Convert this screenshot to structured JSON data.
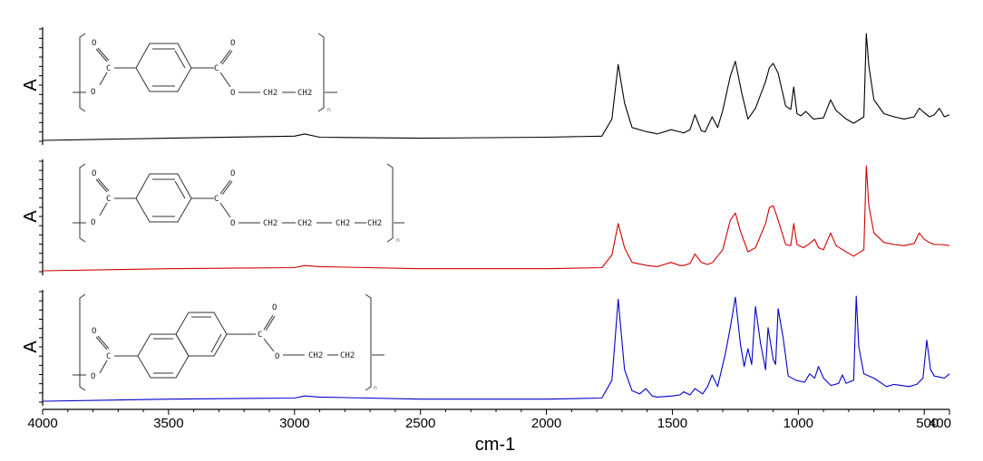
{
  "chart_data": [
    {
      "type": "line",
      "ylabel": "A",
      "color": "#000000",
      "structure": {
        "kind": "benzene",
        "labels": [
          "O",
          "C",
          "O",
          "C",
          "O",
          "O",
          "CH2",
          "CH2",
          "n"
        ]
      },
      "series": [
        {
          "x": [
            4000,
            3500,
            3000,
            2960,
            2900,
            2500,
            2000,
            1780,
            1740,
            1715,
            1690,
            1660,
            1600,
            1578,
            1560,
            1505,
            1470,
            1455,
            1430,
            1410,
            1385,
            1370,
            1342,
            1320,
            1300,
            1270,
            1250,
            1225,
            1200,
            1170,
            1130,
            1115,
            1100,
            1080,
            1050,
            1030,
            1018,
            1005,
            990,
            970,
            940,
            900,
            872,
            850,
            810,
            780,
            740,
            730,
            720,
            700,
            660,
            620,
            580,
            540,
            520,
            500,
            480,
            460,
            440,
            420,
            400
          ],
          "y": [
            0.0,
            0.02,
            0.04,
            0.06,
            0.03,
            0.02,
            0.03,
            0.04,
            0.2,
            0.71,
            0.35,
            0.12,
            0.08,
            0.07,
            0.06,
            0.1,
            0.08,
            0.07,
            0.1,
            0.24,
            0.09,
            0.08,
            0.22,
            0.12,
            0.28,
            0.6,
            0.74,
            0.45,
            0.2,
            0.3,
            0.55,
            0.68,
            0.72,
            0.63,
            0.32,
            0.29,
            0.5,
            0.25,
            0.23,
            0.27,
            0.2,
            0.21,
            0.38,
            0.28,
            0.2,
            0.16,
            0.22,
            1.0,
            0.7,
            0.38,
            0.25,
            0.22,
            0.2,
            0.22,
            0.3,
            0.26,
            0.22,
            0.24,
            0.3,
            0.22,
            0.24
          ]
        }
      ]
    },
    {
      "type": "line",
      "ylabel": "A",
      "color": "#d00000",
      "structure": {
        "kind": "benzene",
        "labels": [
          "O",
          "C",
          "O",
          "C",
          "O",
          "O",
          "CH2",
          "CH2",
          "CH2",
          "CH2",
          "n"
        ]
      },
      "series": [
        {
          "x": [
            4000,
            3500,
            3000,
            2960,
            2900,
            2500,
            2000,
            1780,
            1740,
            1715,
            1690,
            1660,
            1600,
            1560,
            1505,
            1470,
            1455,
            1430,
            1410,
            1385,
            1360,
            1340,
            1300,
            1270,
            1250,
            1230,
            1200,
            1170,
            1130,
            1115,
            1100,
            1085,
            1050,
            1030,
            1018,
            1005,
            980,
            960,
            935,
            920,
            900,
            872,
            850,
            810,
            780,
            740,
            730,
            720,
            700,
            660,
            620,
            580,
            540,
            520,
            500,
            480,
            460,
            430,
            400
          ],
          "y": [
            0.0,
            0.02,
            0.03,
            0.05,
            0.04,
            0.02,
            0.02,
            0.03,
            0.15,
            0.45,
            0.22,
            0.08,
            0.05,
            0.04,
            0.08,
            0.05,
            0.05,
            0.07,
            0.16,
            0.08,
            0.06,
            0.08,
            0.2,
            0.48,
            0.55,
            0.38,
            0.18,
            0.22,
            0.45,
            0.6,
            0.62,
            0.52,
            0.25,
            0.24,
            0.45,
            0.25,
            0.22,
            0.25,
            0.3,
            0.22,
            0.2,
            0.36,
            0.24,
            0.18,
            0.14,
            0.2,
            1.0,
            0.62,
            0.36,
            0.27,
            0.25,
            0.24,
            0.26,
            0.36,
            0.3,
            0.27,
            0.25,
            0.25,
            0.24
          ]
        }
      ]
    },
    {
      "type": "line",
      "ylabel": "A",
      "color": "#0000cc",
      "structure": {
        "kind": "naphthalene",
        "labels": [
          "O",
          "C",
          "O",
          "C",
          "O",
          "O",
          "CH2",
          "CH2",
          "n"
        ]
      },
      "series": [
        {
          "x": [
            4000,
            3500,
            3000,
            2960,
            2900,
            2500,
            2000,
            1780,
            1740,
            1715,
            1690,
            1660,
            1630,
            1605,
            1580,
            1560,
            1500,
            1470,
            1455,
            1430,
            1410,
            1380,
            1360,
            1342,
            1320,
            1290,
            1270,
            1250,
            1230,
            1215,
            1200,
            1185,
            1170,
            1150,
            1130,
            1120,
            1100,
            1090,
            1080,
            1060,
            1040,
            1010,
            975,
            955,
            935,
            920,
            900,
            870,
            840,
            825,
            810,
            780,
            770,
            760,
            740,
            700,
            650,
            620,
            560,
            530,
            505,
            490,
            475,
            460,
            440,
            420,
            400
          ],
          "y": [
            0.0,
            0.02,
            0.03,
            0.05,
            0.04,
            0.02,
            0.02,
            0.03,
            0.2,
            0.97,
            0.3,
            0.1,
            0.07,
            0.12,
            0.05,
            0.04,
            0.05,
            0.06,
            0.09,
            0.06,
            0.12,
            0.07,
            0.14,
            0.25,
            0.14,
            0.45,
            0.7,
            0.99,
            0.55,
            0.33,
            0.5,
            0.35,
            0.9,
            0.55,
            0.3,
            0.7,
            0.4,
            0.35,
            0.88,
            0.6,
            0.24,
            0.2,
            0.18,
            0.26,
            0.22,
            0.33,
            0.22,
            0.15,
            0.17,
            0.25,
            0.17,
            0.2,
            1.0,
            0.52,
            0.26,
            0.22,
            0.14,
            0.16,
            0.14,
            0.16,
            0.22,
            0.58,
            0.3,
            0.24,
            0.23,
            0.22,
            0.26
          ]
        }
      ]
    }
  ],
  "x_axis": {
    "label": "cm-1",
    "xlim": [
      4000,
      400
    ],
    "ticks": [
      4000,
      3500,
      3000,
      2500,
      2000,
      1500,
      1000,
      500,
      400
    ],
    "tick_labels": [
      "4000",
      "3500",
      "3000",
      "2500",
      "2000",
      "1500",
      "1000",
      "500",
      "400"
    ]
  }
}
